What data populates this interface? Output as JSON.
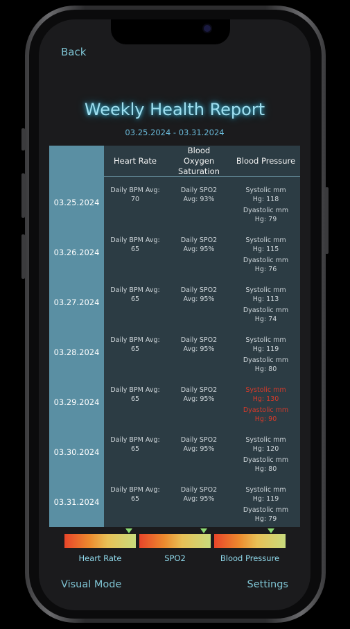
{
  "header": {
    "back_label": "Back"
  },
  "report": {
    "title": "Weekly Health Report",
    "date_range": "03.25.2024 - 03.31.2024"
  },
  "table": {
    "columns": [
      "Heart Rate",
      "Blood Oxygen Saturation",
      "Blood Pressure"
    ],
    "rows": [
      {
        "date": "03.25.2024",
        "hr_label": "Daily BPM Avg:",
        "hr_value": "70",
        "spo2_label": "Daily SPO2",
        "spo2_value": "Avg: 93%",
        "sys_label": "Systolic mm",
        "sys_value": "Hg: 118",
        "dia_label": "Dyastolic mm",
        "dia_value": "Hg: 79",
        "alert": false
      },
      {
        "date": "03.26.2024",
        "hr_label": "Daily BPM Avg:",
        "hr_value": "65",
        "spo2_label": "Daily SPO2",
        "spo2_value": "Avg: 95%",
        "sys_label": "Systolic mm",
        "sys_value": "Hg: 115",
        "dia_label": "Dyastolic mm",
        "dia_value": "Hg: 76",
        "alert": false
      },
      {
        "date": "03.27.2024",
        "hr_label": "Daily BPM Avg:",
        "hr_value": "65",
        "spo2_label": "Daily SPO2",
        "spo2_value": "Avg: 95%",
        "sys_label": "Systolic mm",
        "sys_value": "Hg: 113",
        "dia_label": "Dyastolic mm",
        "dia_value": "Hg: 74",
        "alert": false
      },
      {
        "date": "03.28.2024",
        "hr_label": "Daily BPM Avg:",
        "hr_value": "65",
        "spo2_label": "Daily SPO2",
        "spo2_value": "Avg: 95%",
        "sys_label": "Systolic mm",
        "sys_value": "Hg: 119",
        "dia_label": "Dyastolic mm",
        "dia_value": "Hg: 80",
        "alert": false
      },
      {
        "date": "03.29.2024",
        "hr_label": "Daily BPM Avg:",
        "hr_value": "65",
        "spo2_label": "Daily SPO2",
        "spo2_value": "Avg: 95%",
        "sys_label": "Systolic mm",
        "sys_value": "Hg: 130",
        "dia_label": "Dyastolic mm",
        "dia_value": "Hg: 90",
        "alert": true
      },
      {
        "date": "03.30.2024",
        "hr_label": "Daily BPM Avg:",
        "hr_value": "65",
        "spo2_label": "Daily SPO2",
        "spo2_value": "Avg: 95%",
        "sys_label": "Systolic mm",
        "sys_value": "Hg: 120",
        "dia_label": "Dyastolic mm",
        "dia_value": "Hg: 80",
        "alert": false
      },
      {
        "date": "03.31.2024",
        "hr_label": "Daily BPM Avg:",
        "hr_value": "65",
        "spo2_label": "Daily SPO2",
        "spo2_value": "Avg: 95%",
        "sys_label": "Systolic mm",
        "sys_value": "Hg: 119",
        "dia_label": "Dyastolic mm",
        "dia_value": "Hg: 79",
        "alert": false
      }
    ]
  },
  "gauges": [
    {
      "label": "Heart Rate",
      "level": 0.9
    },
    {
      "label": "SPO2",
      "level": 0.9
    },
    {
      "label": "Blood Pressure",
      "level": 0.8
    }
  ],
  "footer": {
    "visual_mode_label": "Visual Mode",
    "settings_label": "Settings"
  },
  "colors": {
    "alert": "#d83a2a",
    "accent": "#7ec3d2",
    "gauge_marker": "#8ddb72"
  }
}
